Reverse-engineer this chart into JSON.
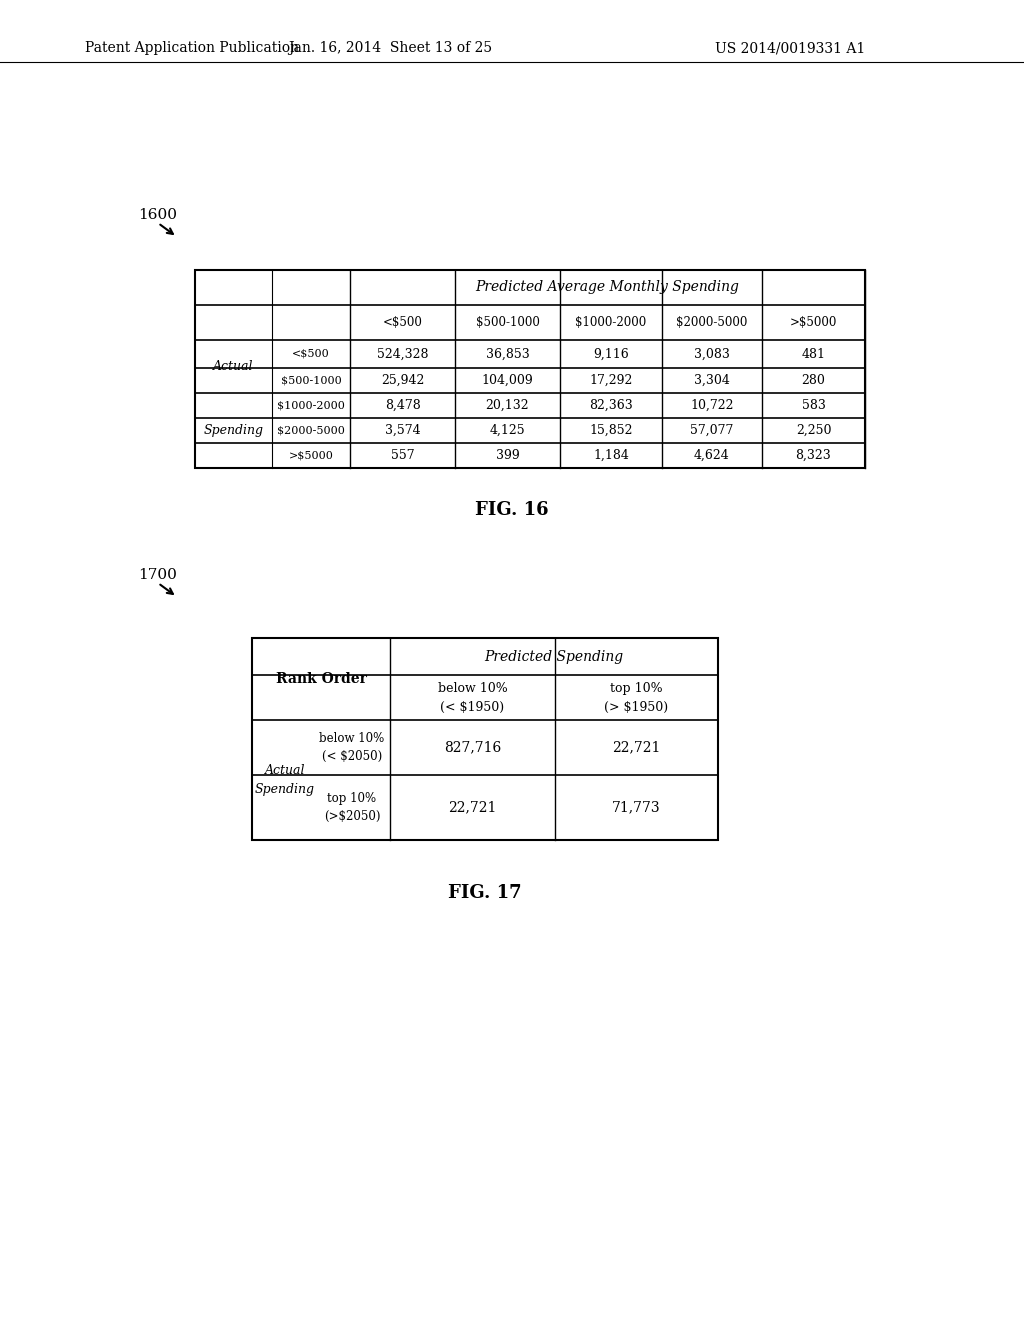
{
  "header_text": "Patent Application Publication",
  "header_date": "Jan. 16, 2014  Sheet 13 of 25",
  "header_patent": "US 2014/0019331 A1",
  "fig16_label": "1600",
  "fig17_label": "1700",
  "fig16_caption": "FIG. 16",
  "fig17_caption": "FIG. 17",
  "fig16_header_main": "Predicted Average Monthly Spending",
  "fig16_col_headers": [
    "<$500",
    "$500-1000",
    "$1000-2000",
    "$2000-5000",
    ">$5000"
  ],
  "fig16_row_labels_sub": [
    "<$500",
    "$500-1000",
    "$1000-2000",
    "$2000-5000",
    ">$5000"
  ],
  "fig16_data": [
    [
      "524,328",
      "36,853",
      "9,116",
      "3,083",
      "481"
    ],
    [
      "25,942",
      "104,009",
      "17,292",
      "3,304",
      "280"
    ],
    [
      "8,478",
      "20,132",
      "82,363",
      "10,722",
      "583"
    ],
    [
      "3,574",
      "4,125",
      "15,852",
      "57,077",
      "2,250"
    ],
    [
      "557",
      "399",
      "1,184",
      "4,624",
      "8,323"
    ]
  ],
  "fig17_header_main": "Predicted Spending",
  "fig17_col_headers_line1": [
    "below 10%",
    "top 10%"
  ],
  "fig17_col_headers_line2": [
    "(< $1950)",
    "(> $1950)"
  ],
  "fig17_rank_order": "Rank Order",
  "fig17_row_sub1_line1": "below 10%",
  "fig17_row_sub1_line2": "(< $2050)",
  "fig17_row_sub2_line1": "top 10%",
  "fig17_row_sub2_line2": "(>$2050)",
  "fig17_data": [
    [
      "827,716",
      "22,721"
    ],
    [
      "22,721",
      "71,773"
    ]
  ],
  "bg_color": "#ffffff",
  "text_color": "#000000",
  "line_color": "#000000"
}
